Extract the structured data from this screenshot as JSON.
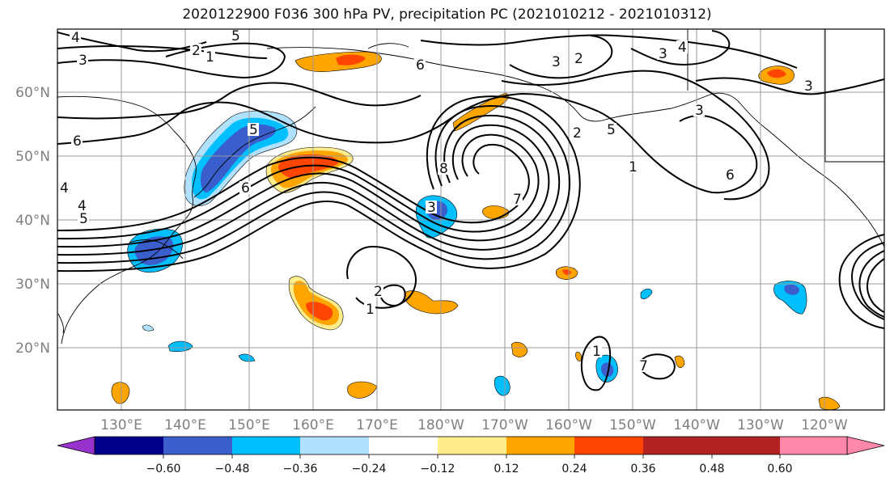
{
  "title": "2020122900 F036 300 hPa PV, precipitation PC (2021010212 - 2021010312)",
  "lat_labels": [
    "60°N",
    "50°N",
    "40°N",
    "30°N",
    "20°N"
  ],
  "lon_labels": [
    "130°E",
    "140°E",
    "150°E",
    "160°E",
    "170°E",
    "180°W",
    "170°W",
    "160°W",
    "150°W",
    "140°W",
    "130°W",
    "120°W"
  ],
  "colorbar": {
    "ticks": [
      "−0.60",
      "−0.48",
      "−0.36",
      "−0.24",
      "−0.12",
      "0.12",
      "0.24",
      "0.36",
      "0.48",
      "0.60"
    ],
    "colors": [
      "#9932cc",
      "#00008b",
      "#3a5fcd",
      "#00bfff",
      "#b0e2ff",
      "#ffffff",
      "#ffec8b",
      "#ffa500",
      "#ff4500",
      "#b22222",
      "#ff88aa"
    ]
  },
  "pv_contour_labels": [
    "4",
    "3",
    "2",
    "1",
    "5",
    "6",
    "6",
    "5",
    "3",
    "2",
    "4",
    "3",
    "3",
    "2",
    "1",
    "6",
    "5",
    "3",
    "4",
    "4",
    "5",
    "8",
    "7",
    "6",
    "1",
    "2",
    "1",
    "7",
    "3"
  ]
}
